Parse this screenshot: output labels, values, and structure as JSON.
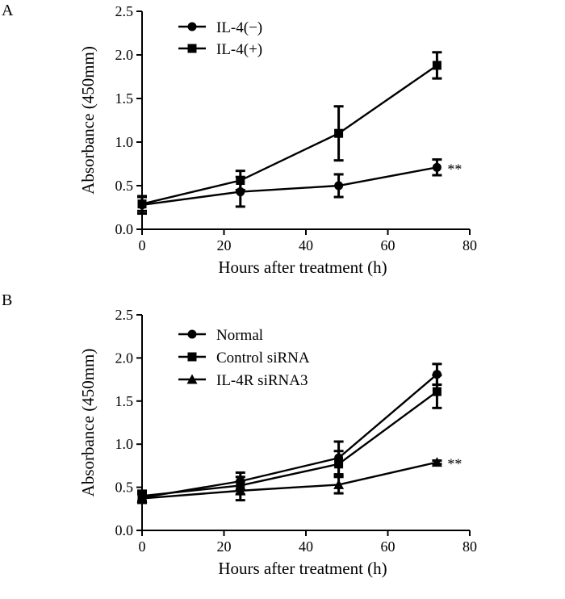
{
  "chart_data": [
    {
      "panel": "A",
      "type": "line",
      "xlabel": "Hours after treatment (h)",
      "ylabel": "Absorbance (450mm)",
      "xlim": [
        0,
        80
      ],
      "ylim": [
        0,
        2.5
      ],
      "xticks": [
        0,
        20,
        40,
        60,
        80
      ],
      "yticks": [
        0.0,
        0.5,
        1.0,
        1.5,
        2.0,
        2.5
      ],
      "x": [
        0,
        24,
        48,
        72
      ],
      "legend_position": "top-left",
      "series": [
        {
          "name": "IL-4(−)",
          "marker": "circle",
          "values": [
            0.28,
            0.43,
            0.5,
            0.71
          ],
          "errors": [
            0.1,
            0.17,
            0.13,
            0.09
          ]
        },
        {
          "name": "IL-4(+)",
          "marker": "square",
          "values": [
            0.29,
            0.56,
            1.1,
            1.88
          ],
          "errors": [
            0.08,
            0.11,
            0.31,
            0.15
          ]
        }
      ],
      "annotations": [
        {
          "text": "**",
          "x": 72,
          "y": 0.71
        }
      ]
    },
    {
      "panel": "B",
      "type": "line",
      "xlabel": "Hours after treatment (h)",
      "ylabel": "Absorbance (450mm)",
      "xlim": [
        0,
        80
      ],
      "ylim": [
        0,
        2.5
      ],
      "xticks": [
        0,
        20,
        40,
        60,
        80
      ],
      "yticks": [
        0.0,
        0.5,
        1.0,
        1.5,
        2.0,
        2.5
      ],
      "x": [
        0,
        24,
        48,
        72
      ],
      "legend_position": "top-left",
      "series": [
        {
          "name": "Normal",
          "marker": "circle",
          "values": [
            0.38,
            0.57,
            0.84,
            1.81
          ],
          "errors": [
            0.06,
            0.1,
            0.19,
            0.12
          ]
        },
        {
          "name": "Control siRNA",
          "marker": "square",
          "values": [
            0.4,
            0.52,
            0.77,
            1.61
          ],
          "errors": [
            0.06,
            0.1,
            0.15,
            0.19
          ]
        },
        {
          "name": "IL-4R siRNA3",
          "marker": "triangle",
          "values": [
            0.37,
            0.46,
            0.53,
            0.79
          ],
          "errors": [
            0.05,
            0.11,
            0.1,
            0.02
          ]
        }
      ],
      "annotations": [
        {
          "text": "**",
          "x": 72,
          "y": 0.79
        }
      ]
    }
  ]
}
